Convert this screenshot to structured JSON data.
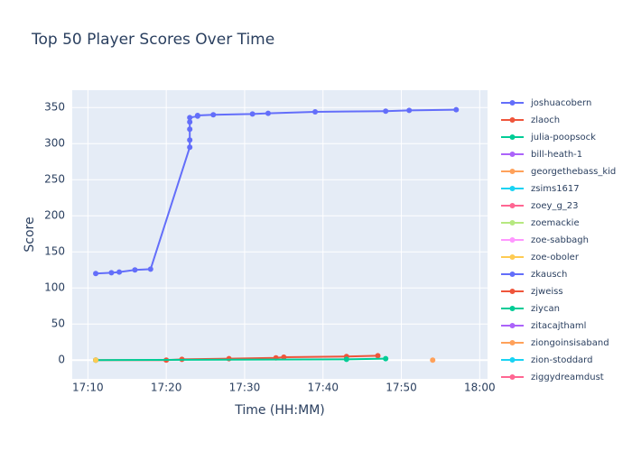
{
  "chart_data": {
    "type": "line",
    "title": "Top 50 Player Scores Over Time",
    "x_label": "Time (HH:MM)",
    "y_label": "Score",
    "xlim": [
      "17:08",
      "18:01"
    ],
    "xticks": [
      "17:10",
      "17:20",
      "17:30",
      "17:40",
      "17:50",
      "18:00"
    ],
    "ylim": [
      -26,
      374
    ],
    "yticks": [
      0,
      50,
      100,
      150,
      200,
      250,
      300,
      350
    ],
    "grid": true,
    "legend": "right",
    "series": [
      {
        "name": "joshuacobern",
        "color": "#636efa",
        "x": [
          "17:11",
          "17:13",
          "17:14",
          "17:16",
          "17:18",
          "17:23",
          "17:23",
          "17:23",
          "17:23",
          "17:23",
          "17:24",
          "17:24",
          "17:26",
          "17:31",
          "17:33",
          "17:39",
          "17:48",
          "17:51",
          "17:57"
        ],
        "values": [
          120,
          121,
          122,
          125,
          126,
          295,
          305,
          320,
          330,
          336,
          338,
          339,
          340,
          341,
          342,
          344,
          345,
          346,
          347
        ]
      },
      {
        "name": "zlaoch",
        "color": "#EF553B",
        "x": [
          "17:11",
          "17:20",
          "17:22",
          "17:28",
          "17:34",
          "17:35",
          "17:43",
          "17:47"
        ],
        "values": [
          0,
          0,
          1,
          2,
          3,
          4,
          5,
          6
        ]
      },
      {
        "name": "julia-poopsock",
        "color": "#00cc96",
        "x": [
          "17:11",
          "17:43",
          "17:48"
        ],
        "values": [
          0,
          1,
          2
        ]
      },
      {
        "name": "bill-heath-1",
        "color": "#ab63fa",
        "x": [],
        "values": []
      },
      {
        "name": "georgethebass_kid",
        "color": "#FFA15A",
        "x": [
          "17:54"
        ],
        "values": [
          0
        ]
      },
      {
        "name": "zsims1617",
        "color": "#19d3f3",
        "x": [],
        "values": []
      },
      {
        "name": "zoey_g_23",
        "color": "#FF6692",
        "x": [],
        "values": []
      },
      {
        "name": "zoemackie",
        "color": "#B6E880",
        "x": [],
        "values": []
      },
      {
        "name": "zoe-sabbagh",
        "color": "#FF97FF",
        "x": [],
        "values": []
      },
      {
        "name": "zoe-oboler",
        "color": "#FECB52",
        "x": [
          "17:11"
        ],
        "values": [
          0
        ]
      },
      {
        "name": "zkausch",
        "color": "#636efa",
        "x": [],
        "values": []
      },
      {
        "name": "zjweiss",
        "color": "#EF553B",
        "x": [],
        "values": []
      },
      {
        "name": "ziycan",
        "color": "#00cc96",
        "x": [],
        "values": []
      },
      {
        "name": "zitacajthaml",
        "color": "#ab63fa",
        "x": [],
        "values": []
      },
      {
        "name": "ziongoinsisaband",
        "color": "#FFA15A",
        "x": [],
        "values": []
      },
      {
        "name": "zion-stoddard",
        "color": "#19d3f3",
        "x": [],
        "values": []
      },
      {
        "name": "ziggydreamdust",
        "color": "#FF6692",
        "x": [],
        "values": []
      }
    ]
  }
}
